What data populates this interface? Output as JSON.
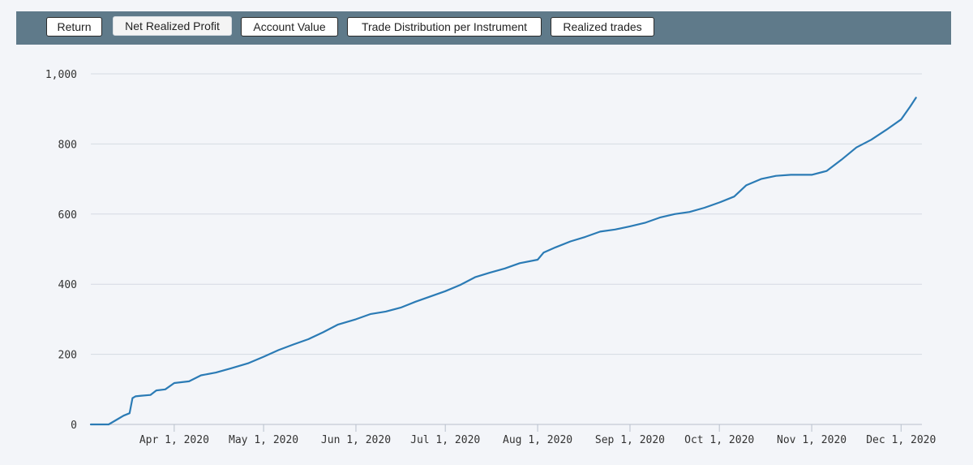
{
  "toolbar": {
    "tabs": [
      {
        "label": "Return",
        "active": false
      },
      {
        "label": "Net Realized Profit",
        "active": true
      },
      {
        "label": "Account Value",
        "active": false
      },
      {
        "label": "Trade Distribution per Instrument",
        "active": false
      },
      {
        "label": "Realized trades",
        "active": false
      }
    ]
  },
  "colors": {
    "line": "#2b7bb5",
    "toolbar": "#5f7a8a",
    "background": "#f3f5f9",
    "grid": "#d5dae2"
  },
  "chart_data": {
    "type": "line",
    "title": "",
    "xlabel": "",
    "ylabel": "",
    "grid": true,
    "legend": "none",
    "y_ticks": [
      0,
      200,
      400,
      600,
      800,
      1000
    ],
    "y_tick_labels": [
      "0",
      "200",
      "400",
      "600",
      "800",
      "1,000"
    ],
    "ylim": [
      0,
      1000
    ],
    "x_range": [
      "2020-03-04",
      "2020-12-08"
    ],
    "x_ticks": [
      "2020-04-01",
      "2020-05-01",
      "2020-06-01",
      "2020-07-01",
      "2020-08-01",
      "2020-09-01",
      "2020-10-01",
      "2020-11-01",
      "2020-12-01"
    ],
    "x_tick_labels": [
      "Apr 1, 2020",
      "May 1, 2020",
      "Jun 1, 2020",
      "Jul 1, 2020",
      "Aug 1, 2020",
      "Sep 1, 2020",
      "Oct 1, 2020",
      "Nov 1, 2020",
      "Dec 1, 2020"
    ],
    "series": [
      {
        "x": [
          "2020-03-04",
          "2020-03-10",
          "2020-03-13",
          "2020-03-15",
          "2020-03-17",
          "2020-03-18",
          "2020-03-19",
          "2020-03-21",
          "2020-03-24",
          "2020-03-26",
          "2020-03-29",
          "2020-04-01",
          "2020-04-06",
          "2020-04-10",
          "2020-04-15",
          "2020-04-20",
          "2020-04-26",
          "2020-05-01",
          "2020-05-06",
          "2020-05-11",
          "2020-05-16",
          "2020-05-21",
          "2020-05-26",
          "2020-06-01",
          "2020-06-06",
          "2020-06-11",
          "2020-06-16",
          "2020-06-21",
          "2020-06-26",
          "2020-07-01",
          "2020-07-06",
          "2020-07-11",
          "2020-07-16",
          "2020-07-21",
          "2020-07-26",
          "2020-08-01",
          "2020-08-03",
          "2020-08-07",
          "2020-08-12",
          "2020-08-17",
          "2020-08-22",
          "2020-08-27",
          "2020-09-01",
          "2020-09-06",
          "2020-09-11",
          "2020-09-16",
          "2020-09-21",
          "2020-09-26",
          "2020-10-01",
          "2020-10-06",
          "2020-10-10",
          "2020-10-15",
          "2020-10-20",
          "2020-10-25",
          "2020-10-30",
          "2020-11-01",
          "2020-11-06",
          "2020-11-11",
          "2020-11-16",
          "2020-11-21",
          "2020-11-26",
          "2020-12-01",
          "2020-12-04",
          "2020-12-06"
        ],
        "y": [
          0,
          0,
          15,
          25,
          32,
          75,
          80,
          82,
          84,
          97,
          100,
          118,
          123,
          140,
          148,
          160,
          175,
          193,
          212,
          228,
          243,
          263,
          285,
          300,
          315,
          322,
          333,
          350,
          365,
          380,
          398,
          420,
          433,
          445,
          460,
          470,
          490,
          505,
          522,
          535,
          550,
          556,
          565,
          575,
          590,
          600,
          606,
          618,
          633,
          650,
          682,
          700,
          709,
          712,
          712,
          712,
          723,
          755,
          790,
          812,
          840,
          870,
          906,
          932
        ]
      }
    ]
  }
}
